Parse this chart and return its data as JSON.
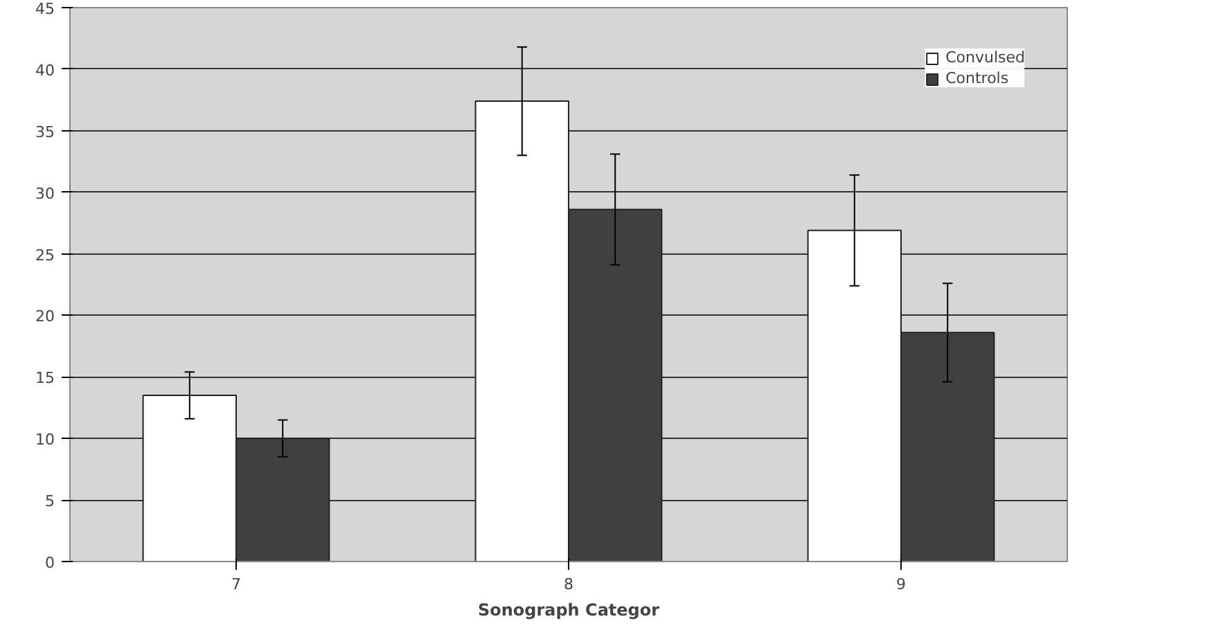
{
  "chart_data": {
    "type": "bar",
    "xlabel": "Sonograph Categor",
    "categories": [
      "7",
      "8",
      "9"
    ],
    "series": [
      {
        "name": "Convulsed",
        "color": "#ffffff",
        "values": [
          13.5,
          37.4,
          26.9
        ],
        "errors": [
          1.9,
          4.4,
          4.5
        ]
      },
      {
        "name": "Controls",
        "color": "#404040",
        "values": [
          10.0,
          28.6,
          18.6
        ],
        "errors": [
          1.5,
          4.5,
          4.0
        ]
      }
    ],
    "ylim": [
      0,
      45
    ],
    "yticks": [
      0,
      5,
      10,
      15,
      20,
      25,
      30,
      35,
      40,
      45
    ],
    "grid": "y",
    "legend": "top right"
  }
}
